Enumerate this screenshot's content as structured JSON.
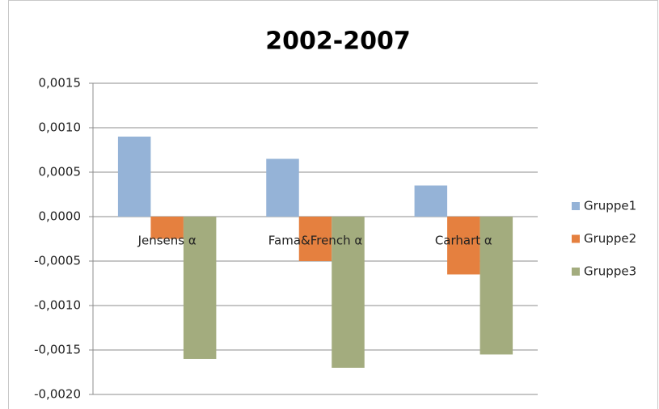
{
  "chart_data": {
    "type": "bar",
    "title": "2002-2007",
    "categories": [
      "Jensens α",
      "Fama&French α",
      "Carhart α"
    ],
    "series": [
      {
        "name": "Gruppe1",
        "color": "#95b3d7",
        "values": [
          0.0009,
          0.00065,
          0.00035
        ]
      },
      {
        "name": "Gruppe2",
        "color": "#e5803f",
        "values": [
          -0.00025,
          -0.0005,
          -0.00065
        ]
      },
      {
        "name": "Gruppe3",
        "color": "#a3ac7e",
        "values": [
          -0.0016,
          -0.0017,
          -0.00155
        ]
      }
    ],
    "ylim": [
      -0.002,
      0.0015
    ],
    "yticks": [
      {
        "value": -0.002,
        "label": "-0,0020"
      },
      {
        "value": -0.0015,
        "label": "-0,0015"
      },
      {
        "value": -0.001,
        "label": "-0,0010"
      },
      {
        "value": -0.0005,
        "label": "-0,0005"
      },
      {
        "value": 0,
        "label": "0,0000"
      },
      {
        "value": 0.0005,
        "label": "0,0005"
      },
      {
        "value": 0.001,
        "label": "0,0010"
      },
      {
        "value": 0.0015,
        "label": "0,0015"
      }
    ],
    "grid": true,
    "legend": "right"
  }
}
